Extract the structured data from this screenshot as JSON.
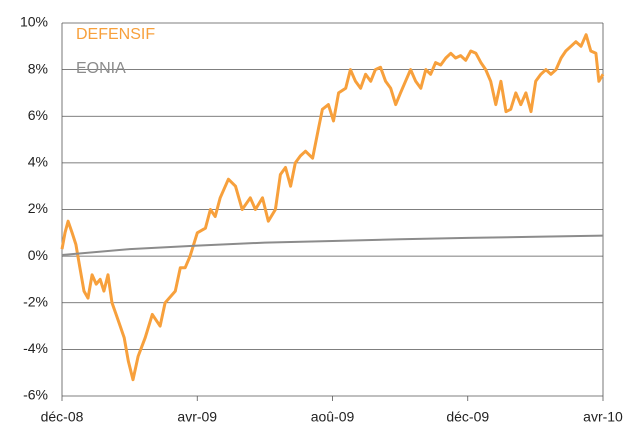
{
  "chart_data": {
    "type": "line",
    "xlim": [
      0,
      16
    ],
    "xticks": [
      {
        "value": 0,
        "label": "déc-08"
      },
      {
        "value": 4,
        "label": "avr-09"
      },
      {
        "value": 8,
        "label": "aoû-09"
      },
      {
        "value": 12,
        "label": "déc-09"
      },
      {
        "value": 16,
        "label": "avr-10"
      }
    ],
    "ylim": [
      -6,
      10
    ],
    "yticks": [
      {
        "value": -6,
        "label": "-6%"
      },
      {
        "value": -4,
        "label": "-4%"
      },
      {
        "value": -2,
        "label": "-2%"
      },
      {
        "value": 0,
        "label": "0%"
      },
      {
        "value": 2,
        "label": "2%"
      },
      {
        "value": 4,
        "label": "4%"
      },
      {
        "value": 6,
        "label": "6%"
      },
      {
        "value": 8,
        "label": "8%"
      },
      {
        "value": 10,
        "label": "10%"
      }
    ],
    "grid": true,
    "legend": "top-left",
    "series": [
      {
        "name": "DEFENSIF",
        "color": "#f7a03c",
        "x": [
          0,
          0.09,
          0.18,
          0.3,
          0.41,
          0.53,
          0.65,
          0.77,
          0.89,
          1.01,
          1.13,
          1.24,
          1.36,
          1.48,
          1.6,
          1.72,
          1.84,
          1.96,
          2.1,
          2.25,
          2.46,
          2.67,
          2.9,
          3.05,
          3.35,
          3.5,
          3.64,
          3.79,
          4.0,
          4.24,
          4.39,
          4.53,
          4.68,
          4.92,
          5.13,
          5.33,
          5.57,
          5.72,
          5.93,
          6.1,
          6.31,
          6.46,
          6.61,
          6.76,
          6.9,
          7.05,
          7.2,
          7.41,
          7.59,
          7.7,
          7.88,
          8.03,
          8.18,
          8.39,
          8.53,
          8.68,
          8.83,
          8.98,
          9.13,
          9.27,
          9.42,
          9.57,
          9.72,
          9.87,
          10.01,
          10.16,
          10.31,
          10.46,
          10.61,
          10.76,
          10.9,
          11.05,
          11.2,
          11.35,
          11.5,
          11.64,
          11.79,
          11.94,
          12.09,
          12.24,
          12.39,
          12.53,
          12.68,
          12.83,
          12.98,
          13.13,
          13.27,
          13.42,
          13.57,
          13.72,
          13.87,
          14.01,
          14.16,
          14.31,
          14.46,
          14.61,
          14.76,
          14.9,
          15.05,
          15.2,
          15.35,
          15.5,
          15.64,
          15.79,
          15.88,
          16
        ],
        "values": [
          0.3,
          1.0,
          1.5,
          1.0,
          0.5,
          -0.5,
          -1.5,
          -1.8,
          -0.8,
          -1.2,
          -1.0,
          -1.5,
          -0.8,
          -2.0,
          -2.5,
          -3.0,
          -3.5,
          -4.5,
          -5.3,
          -4.3,
          -3.5,
          -2.5,
          -3.0,
          -2.0,
          -1.5,
          -0.5,
          -0.5,
          0.0,
          1.0,
          1.2,
          2.0,
          1.7,
          2.5,
          3.3,
          3.0,
          2.0,
          2.5,
          2.0,
          2.5,
          1.5,
          2.0,
          3.5,
          3.8,
          3.0,
          4.0,
          4.3,
          4.5,
          4.2,
          5.5,
          6.3,
          6.5,
          5.8,
          7.0,
          7.2,
          8.0,
          7.5,
          7.2,
          7.8,
          7.5,
          8.0,
          8.1,
          7.5,
          7.2,
          6.5,
          7.0,
          7.5,
          8.0,
          7.5,
          7.2,
          8.0,
          7.8,
          8.3,
          8.2,
          8.5,
          8.7,
          8.5,
          8.6,
          8.4,
          8.8,
          8.7,
          8.3,
          8.0,
          7.5,
          6.5,
          7.5,
          6.2,
          6.3,
          7.0,
          6.5,
          7.0,
          6.2,
          7.5,
          7.8,
          8.0,
          7.8,
          8.0,
          8.5,
          8.8,
          9.0,
          9.2,
          9.0,
          9.5,
          8.8,
          8.7,
          7.5,
          7.8
        ]
      },
      {
        "name": "EONIA",
        "color": "#8c8c8c",
        "x": [
          0,
          2,
          4,
          6,
          8,
          10,
          12,
          14,
          16
        ],
        "values": [
          0.05,
          0.3,
          0.45,
          0.58,
          0.65,
          0.72,
          0.78,
          0.83,
          0.88
        ]
      }
    ]
  }
}
